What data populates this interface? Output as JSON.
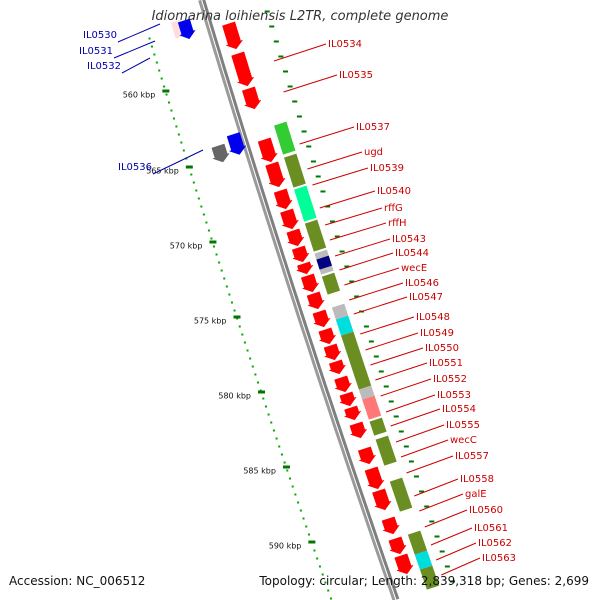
{
  "title": "Idiomarina loihiensis L2TR, complete genome",
  "accession_text": "Accession: NC_006512",
  "topology_text": "Topology: circular; Length: 2,839,318 bp; Genes: 2,699",
  "colors": {
    "backbone": "#7f7f7f",
    "forward_gene": "#ff0000",
    "reverse_gene": "#0000ee",
    "pseudo_gene": "#666666",
    "scale_tick": "#007700",
    "scale_dot": "#00aa00",
    "cog_olive": "#6b8e23",
    "cog_lightgreen": "#33cc33",
    "cog_cyan": "#00dddd",
    "cog_spring": "#00ff99",
    "cog_navy": "#000080",
    "cog_grey": "#bbbbbb",
    "cog_pink": "#ff7777",
    "label_forward": "#cc0000",
    "label_reverse": "#0000aa"
  },
  "kbp_labels": [
    "560 kbp",
    "565 kbp",
    "570 kbp",
    "575 kbp",
    "580 kbp",
    "585 kbp",
    "590 kbp"
  ],
  "reverse_gene_labels": [
    "IL0530",
    "IL0531",
    "IL0532",
    "IL0536"
  ],
  "forward_gene_labels": [
    "IL0534",
    "IL0535",
    "IL0537",
    "ugd",
    "IL0539",
    "IL0540",
    "rffG",
    "rffH",
    "IL0543",
    "IL0544",
    "wecE",
    "IL0546",
    "IL0547",
    "IL0548",
    "IL0549",
    "IL0550",
    "IL0551",
    "IL0552",
    "IL0553",
    "IL0554",
    "IL0555",
    "wecC",
    "IL0557",
    "IL0558",
    "galE",
    "IL0560",
    "IL0561",
    "IL0562",
    "IL0563"
  ]
}
